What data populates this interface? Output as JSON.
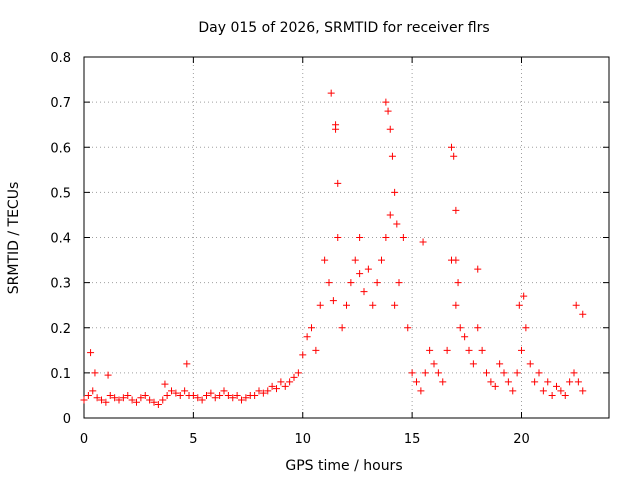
{
  "chart_data": {
    "type": "scatter",
    "title": "Day 015 of 2026, SRMTID for receiver flrs",
    "xlabel": "GPS time / hours",
    "ylabel": "SRMTID / TECUs",
    "xlim": [
      0,
      24
    ],
    "ylim": [
      0,
      0.8
    ],
    "grid": true,
    "marker": "+",
    "marker_color": "#ff0000",
    "x_ticks": [
      0,
      5,
      10,
      15,
      20
    ],
    "x_tick_labels": [
      "0",
      "5",
      "10",
      "15",
      "20"
    ],
    "y_ticks": [
      0,
      0.1,
      0.2,
      0.3,
      0.4,
      0.5,
      0.6,
      0.7,
      0.8
    ],
    "y_tick_labels": [
      "0",
      "0.1",
      "0.2",
      "0.3",
      "0.4",
      "0.5",
      "0.6",
      "0.7",
      "0.8"
    ],
    "series": [
      {
        "name": "SRMTID",
        "x": [
          0.0,
          0.2,
          0.4,
          0.6,
          0.8,
          1.0,
          1.2,
          1.4,
          1.6,
          1.8,
          2.0,
          2.2,
          2.4,
          2.6,
          2.8,
          3.0,
          3.2,
          3.4,
          3.6,
          3.8,
          4.0,
          4.2,
          4.4,
          4.6,
          4.8,
          5.0,
          5.2,
          5.4,
          5.6,
          5.8,
          6.0,
          6.2,
          6.4,
          6.6,
          6.8,
          7.0,
          7.2,
          7.4,
          7.6,
          7.8,
          8.0,
          8.2,
          8.4,
          8.6,
          8.8,
          9.0,
          9.2,
          9.4,
          9.6,
          9.8,
          10.0,
          10.2,
          10.4,
          10.6,
          10.8,
          11.0,
          11.2,
          11.4,
          11.6,
          11.8,
          12.0,
          12.2,
          12.4,
          12.6,
          12.8,
          13.0,
          13.2,
          13.4,
          13.6,
          13.8,
          14.0,
          14.2,
          14.4,
          14.6,
          14.8,
          15.0,
          15.2,
          15.4,
          15.6,
          15.8,
          16.0,
          16.2,
          16.4,
          16.6,
          16.8,
          17.0,
          17.2,
          17.4,
          17.6,
          17.8,
          18.0,
          18.2,
          18.4,
          18.6,
          18.8,
          19.0,
          19.2,
          19.4,
          19.6,
          19.8,
          20.0,
          20.2,
          20.4,
          20.6,
          20.8,
          21.0,
          21.2,
          21.4,
          21.6,
          21.8,
          22.0,
          22.2,
          22.4,
          22.6,
          22.8,
          0.3,
          0.5,
          1.1,
          3.7,
          4.7,
          11.3,
          11.5,
          11.5,
          11.6,
          12.6,
          13.8,
          13.9,
          14.0,
          14.1,
          14.2,
          14.3,
          15.5,
          16.8,
          16.9,
          17.0,
          17.0,
          17.1,
          18.0,
          19.9,
          20.1,
          22.5,
          22.8
        ],
        "values": [
          0.04,
          0.05,
          0.06,
          0.045,
          0.04,
          0.035,
          0.05,
          0.045,
          0.04,
          0.045,
          0.05,
          0.04,
          0.035,
          0.045,
          0.05,
          0.04,
          0.035,
          0.03,
          0.04,
          0.05,
          0.06,
          0.055,
          0.05,
          0.06,
          0.05,
          0.05,
          0.045,
          0.04,
          0.05,
          0.055,
          0.045,
          0.05,
          0.06,
          0.05,
          0.045,
          0.05,
          0.04,
          0.045,
          0.05,
          0.05,
          0.06,
          0.055,
          0.06,
          0.07,
          0.065,
          0.08,
          0.07,
          0.08,
          0.09,
          0.1,
          0.14,
          0.18,
          0.2,
          0.15,
          0.25,
          0.35,
          0.3,
          0.26,
          0.4,
          0.2,
          0.25,
          0.3,
          0.35,
          0.32,
          0.28,
          0.33,
          0.25,
          0.3,
          0.35,
          0.4,
          0.45,
          0.25,
          0.3,
          0.4,
          0.2,
          0.1,
          0.08,
          0.06,
          0.1,
          0.15,
          0.12,
          0.1,
          0.08,
          0.15,
          0.35,
          0.25,
          0.2,
          0.18,
          0.15,
          0.12,
          0.2,
          0.15,
          0.1,
          0.08,
          0.07,
          0.12,
          0.1,
          0.08,
          0.06,
          0.1,
          0.15,
          0.2,
          0.12,
          0.08,
          0.1,
          0.06,
          0.08,
          0.05,
          0.07,
          0.06,
          0.05,
          0.08,
          0.1,
          0.08,
          0.06,
          0.145,
          0.1,
          0.095,
          0.075,
          0.12,
          0.72,
          0.65,
          0.64,
          0.52,
          0.4,
          0.7,
          0.68,
          0.64,
          0.58,
          0.5,
          0.43,
          0.39,
          0.6,
          0.58,
          0.46,
          0.35,
          0.3,
          0.33,
          0.25,
          0.27,
          0.25,
          0.23
        ]
      }
    ]
  }
}
